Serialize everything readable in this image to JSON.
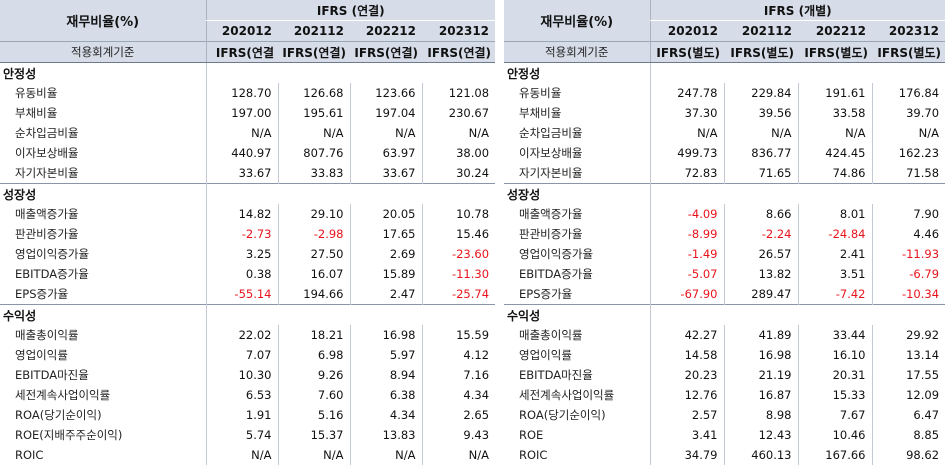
{
  "panels": [
    {
      "title": "재무비율(%)",
      "group": "IFRS (연결)",
      "standard_label": "적용회계기준",
      "years": [
        "202012",
        "202112",
        "202212",
        "202312"
      ],
      "standards": [
        "IFRS(연결",
        "IFRS(연결)",
        "IFRS(연결)",
        "IFRS(연결)"
      ],
      "sections": [
        {
          "name": "안정성",
          "rows": [
            {
              "label": "유동비율",
              "values": [
                "128.70",
                "126.68",
                "123.66",
                "121.08"
              ]
            },
            {
              "label": "부채비율",
              "values": [
                "197.00",
                "195.61",
                "197.04",
                "230.67"
              ]
            },
            {
              "label": "순차입금비율",
              "values": [
                "N/A",
                "N/A",
                "N/A",
                "N/A"
              ]
            },
            {
              "label": "이자보상배율",
              "values": [
                "440.97",
                "807.76",
                "63.97",
                "38.00"
              ]
            },
            {
              "label": "자기자본비율",
              "values": [
                "33.67",
                "33.83",
                "33.67",
                "30.24"
              ]
            }
          ]
        },
        {
          "name": "성장성",
          "rows": [
            {
              "label": "매출액증가율",
              "values": [
                "14.82",
                "29.10",
                "20.05",
                "10.78"
              ]
            },
            {
              "label": "판관비증가율",
              "values": [
                "-2.73",
                "-2.98",
                "17.65",
                "15.46"
              ]
            },
            {
              "label": "영업이익증가율",
              "values": [
                "3.25",
                "27.50",
                "2.69",
                "-23.60"
              ]
            },
            {
              "label": "EBITDA증가율",
              "values": [
                "0.38",
                "16.07",
                "15.89",
                "-11.30"
              ]
            },
            {
              "label": "EPS증가율",
              "values": [
                "-55.14",
                "194.66",
                "2.47",
                "-25.74"
              ]
            }
          ]
        },
        {
          "name": "수익성",
          "rows": [
            {
              "label": "매출총이익률",
              "values": [
                "22.02",
                "18.21",
                "16.98",
                "15.59"
              ]
            },
            {
              "label": "영업이익률",
              "values": [
                "7.07",
                "6.98",
                "5.97",
                "4.12"
              ]
            },
            {
              "label": "EBITDA마진율",
              "values": [
                "10.30",
                "9.26",
                "8.94",
                "7.16"
              ]
            },
            {
              "label": "세전계속사업이익률",
              "values": [
                "6.53",
                "7.60",
                "6.38",
                "4.34"
              ]
            },
            {
              "label": "ROA(당기순이익)",
              "values": [
                "1.91",
                "5.16",
                "4.34",
                "2.65"
              ]
            },
            {
              "label": "ROE(지배주주순이익)",
              "values": [
                "5.74",
                "15.37",
                "13.83",
                "9.43"
              ]
            },
            {
              "label": "ROIC",
              "values": [
                "N/A",
                "N/A",
                "N/A",
                "N/A"
              ]
            }
          ]
        }
      ]
    },
    {
      "title": "재무비율(%)",
      "group": "IFRS (개별)",
      "standard_label": "적용회계기준",
      "years": [
        "202012",
        "202112",
        "202212",
        "202312"
      ],
      "standards": [
        "IFRS(별도)",
        "IFRS(별도)",
        "IFRS(별도)",
        "IFRS(별도)"
      ],
      "sections": [
        {
          "name": "안정성",
          "rows": [
            {
              "label": "유동비율",
              "values": [
                "247.78",
                "229.84",
                "191.61",
                "176.84"
              ]
            },
            {
              "label": "부채비율",
              "values": [
                "37.30",
                "39.56",
                "33.58",
                "39.70"
              ]
            },
            {
              "label": "순차입금비율",
              "values": [
                "N/A",
                "N/A",
                "N/A",
                "N/A"
              ]
            },
            {
              "label": "이자보상배율",
              "values": [
                "499.73",
                "836.77",
                "424.45",
                "162.23"
              ]
            },
            {
              "label": "자기자본비율",
              "values": [
                "72.83",
                "71.65",
                "74.86",
                "71.58"
              ]
            }
          ]
        },
        {
          "name": "성장성",
          "rows": [
            {
              "label": "매출액증가율",
              "values": [
                "-4.09",
                "8.66",
                "8.01",
                "7.90"
              ]
            },
            {
              "label": "판관비증가율",
              "values": [
                "-8.99",
                "-2.24",
                "-24.84",
                "4.46"
              ]
            },
            {
              "label": "영업이익증가율",
              "values": [
                "-1.49",
                "26.57",
                "2.41",
                "-11.93"
              ]
            },
            {
              "label": "EBITDA증가율",
              "values": [
                "-5.07",
                "13.82",
                "3.51",
                "-6.79"
              ]
            },
            {
              "label": "EPS증가율",
              "values": [
                "-67.90",
                "289.47",
                "-7.42",
                "-10.34"
              ]
            }
          ]
        },
        {
          "name": "수익성",
          "rows": [
            {
              "label": "매출총이익률",
              "values": [
                "42.27",
                "41.89",
                "33.44",
                "29.92"
              ]
            },
            {
              "label": "영업이익률",
              "values": [
                "14.58",
                "16.98",
                "16.10",
                "13.14"
              ]
            },
            {
              "label": "EBITDA마진율",
              "values": [
                "20.23",
                "21.19",
                "20.31",
                "17.55"
              ]
            },
            {
              "label": "세전계속사업이익률",
              "values": [
                "12.76",
                "16.87",
                "15.33",
                "12.09"
              ]
            },
            {
              "label": "ROA(당기순이익)",
              "values": [
                "2.57",
                "8.98",
                "7.67",
                "6.47"
              ]
            },
            {
              "label": "ROE",
              "values": [
                "3.41",
                "12.43",
                "10.46",
                "8.85"
              ]
            },
            {
              "label": "ROIC",
              "values": [
                "34.79",
                "460.13",
                "167.66",
                "98.62"
              ]
            }
          ]
        }
      ]
    }
  ],
  "colors": {
    "header_bg": "#d6dde8",
    "negative": "#e8141c",
    "text": "#111111"
  }
}
